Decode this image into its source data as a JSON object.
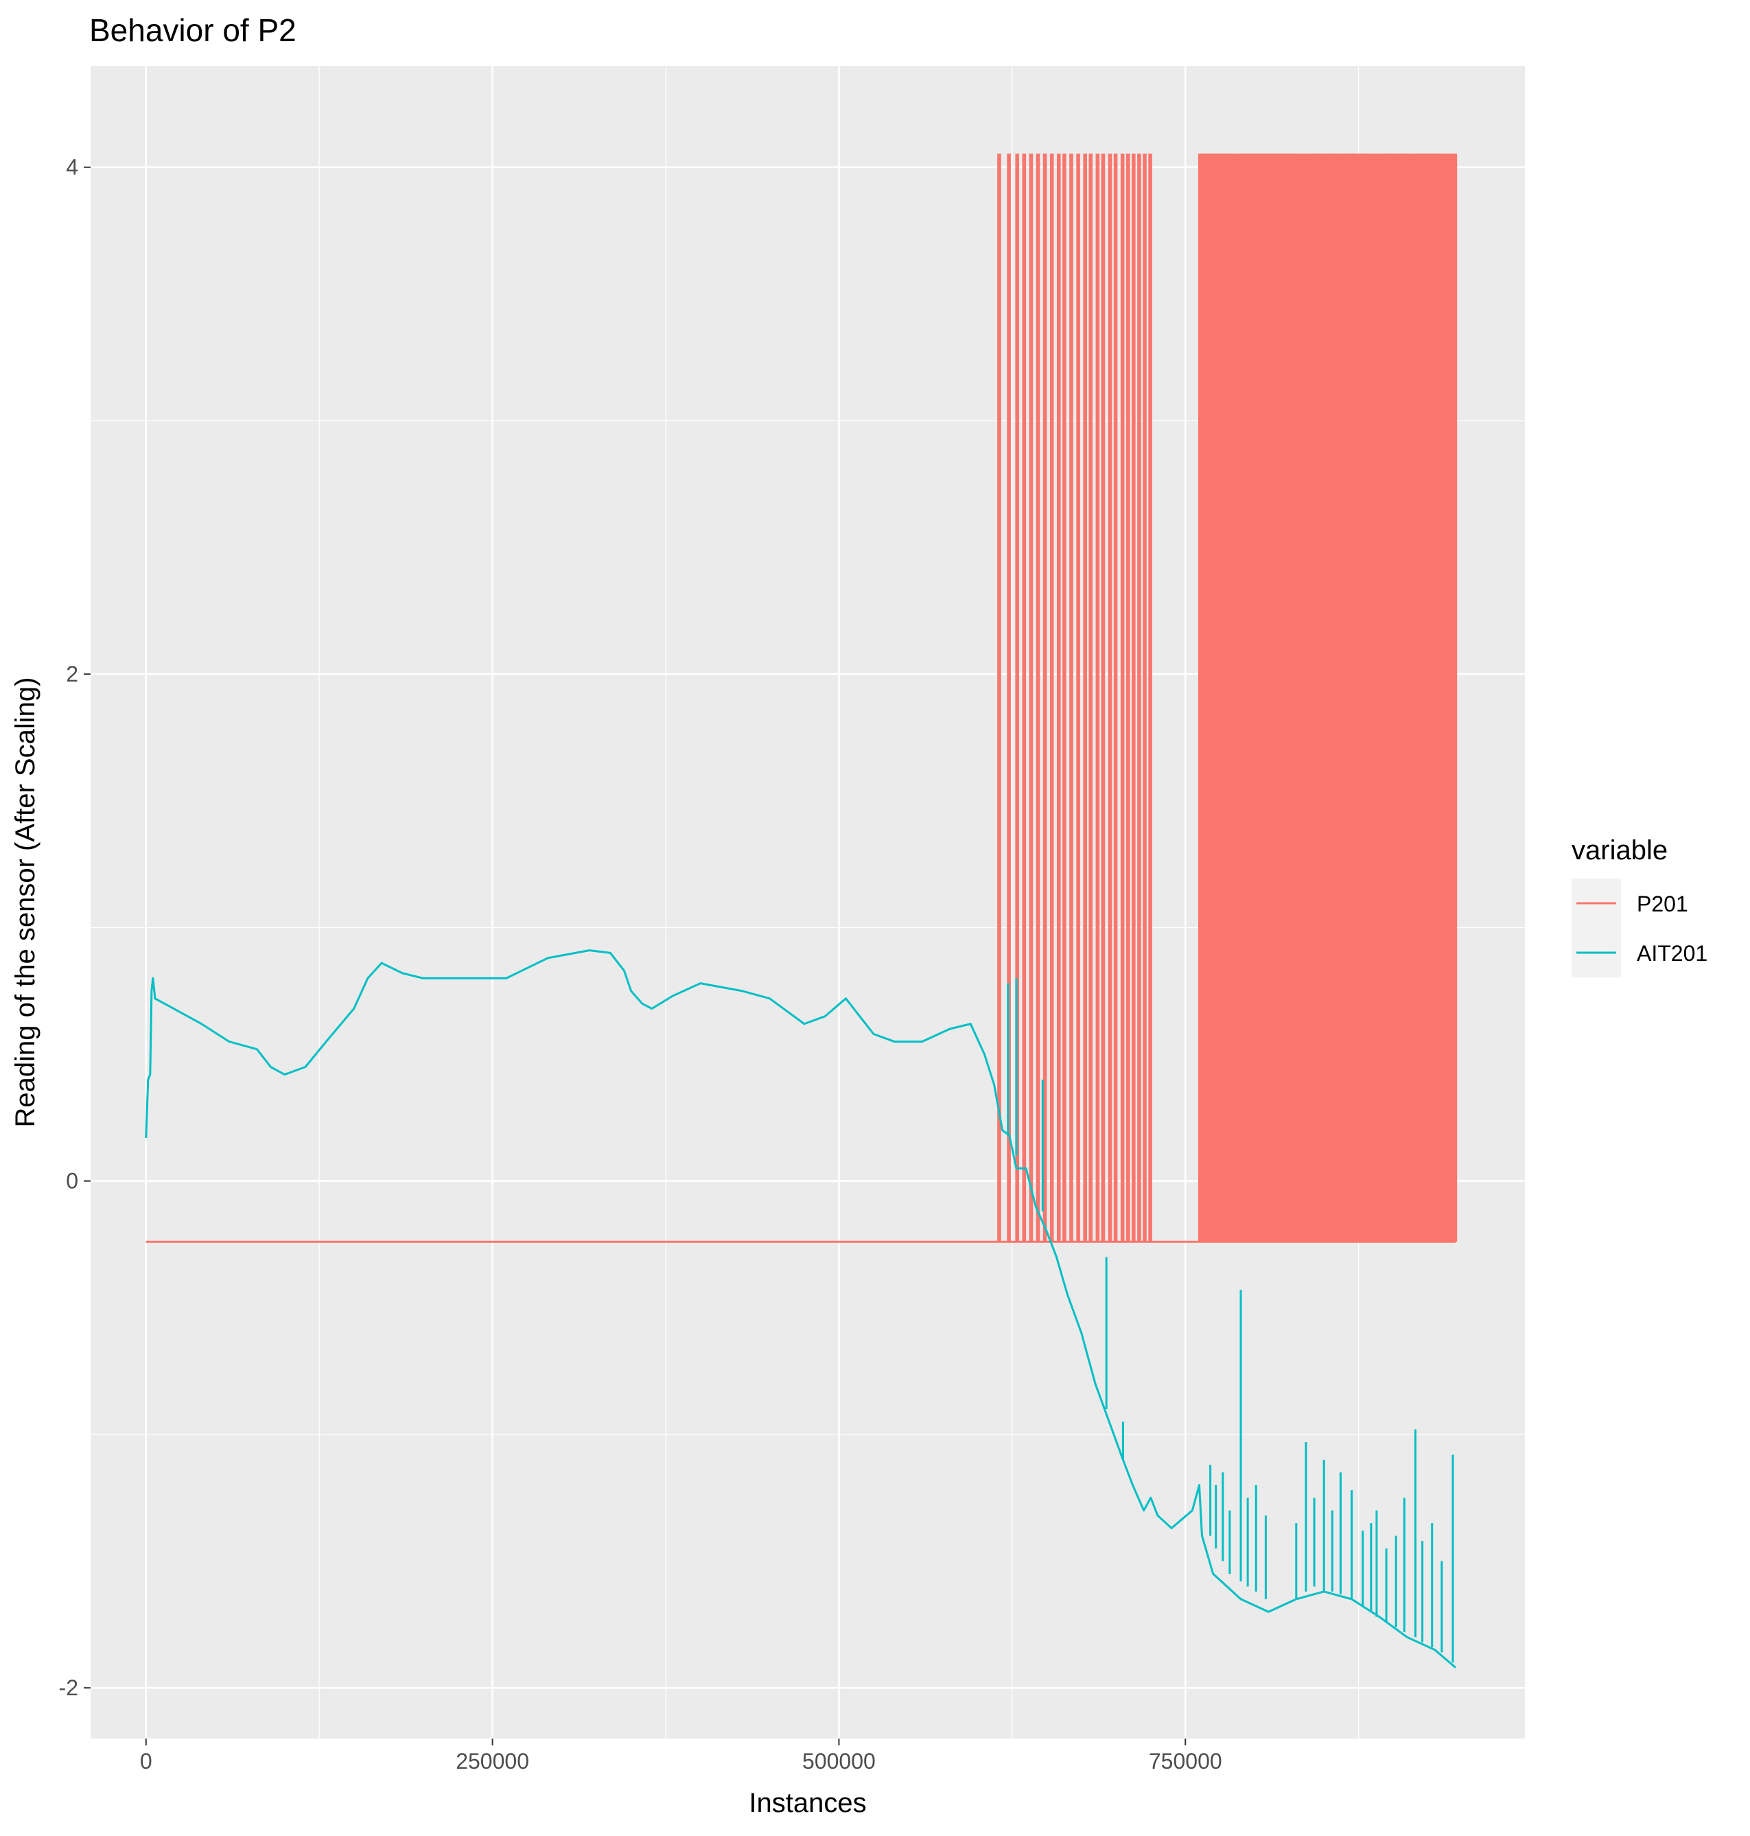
{
  "chart_data": {
    "type": "line",
    "title": "Behavior of P2",
    "xlabel": "Instances",
    "ylabel": "Reading of the sensor (After Scaling)",
    "xlim": [
      -40000,
      995000
    ],
    "ylim": [
      -2.2,
      4.4
    ],
    "x_ticks": [
      0,
      250000,
      500000,
      750000
    ],
    "x_tick_labels": [
      "0",
      "250000",
      "500000",
      "750000"
    ],
    "y_ticks": [
      -2,
      0,
      2,
      4
    ],
    "y_tick_labels": [
      "-2",
      "0",
      "2",
      "4"
    ],
    "grid": true,
    "legend": {
      "title": "variable",
      "position": "right"
    },
    "series": [
      {
        "name": "P201",
        "color": "#F8766D",
        "low": -0.24,
        "high": 4.05,
        "baseline_range": [
          0,
          945000
        ],
        "spikes": [
          615000,
          622000,
          628000,
          633000,
          638000,
          643000,
          648000,
          653000,
          658000,
          662000,
          667000,
          672000,
          677000,
          681000,
          686000,
          690000,
          695000,
          699000,
          704000,
          708000,
          712000,
          716000,
          720000,
          724000,
          760000,
          762000,
          764000,
          766000,
          768000,
          770000,
          772000,
          774000,
          776000,
          778000,
          780000,
          782000,
          784000,
          786000,
          788000,
          790000,
          792000,
          794000,
          796000,
          798000,
          800000,
          802000,
          804000,
          806000,
          808000,
          810000,
          812000,
          814000,
          816000,
          818000,
          820000,
          822000,
          824000,
          826000,
          828000,
          830000,
          832000,
          834000,
          836000,
          838000,
          840000,
          842000,
          844000,
          846000,
          848000,
          850000,
          852000,
          854000,
          856000,
          858000,
          860000,
          862000,
          864000,
          866000,
          868000,
          870000,
          872000,
          874000,
          876000,
          878000,
          880000,
          882000,
          884000,
          886000,
          888000,
          890000,
          892000,
          894000,
          896000,
          898000,
          900000,
          902000,
          904000,
          906000,
          908000,
          910000,
          912000,
          914000,
          916000,
          918000,
          920000,
          922000,
          924000,
          926000,
          928000,
          930000,
          932000,
          934000,
          936000,
          938000,
          940000,
          942000,
          944000
        ],
        "spike_width": 1300
      },
      {
        "name": "AIT201",
        "color": "#00BFC4",
        "x": [
          0,
          1500,
          3000,
          4000,
          5000,
          6500,
          20000,
          40000,
          60000,
          80000,
          90000,
          100000,
          115000,
          130000,
          150000,
          160000,
          170000,
          185000,
          200000,
          230000,
          260000,
          290000,
          320000,
          335000,
          345000,
          350000,
          358000,
          365000,
          380000,
          400000,
          430000,
          450000,
          460000,
          475000,
          490000,
          505000,
          515000,
          525000,
          540000,
          560000,
          580000,
          595000,
          605000,
          612000,
          618000,
          623000,
          628000,
          635000,
          642000,
          650000,
          657000,
          665000,
          675000,
          685000,
          695000,
          705000,
          712000,
          720000,
          725000,
          730000,
          740000,
          755000,
          760000,
          762000,
          770000,
          790000,
          810000,
          830000,
          850000,
          870000,
          890000,
          910000,
          930000,
          945000
        ],
        "y": [
          0.17,
          0.4,
          0.42,
          0.75,
          0.8,
          0.72,
          0.68,
          0.62,
          0.55,
          0.52,
          0.45,
          0.42,
          0.45,
          0.55,
          0.68,
          0.8,
          0.86,
          0.82,
          0.8,
          0.8,
          0.8,
          0.88,
          0.91,
          0.9,
          0.83,
          0.75,
          0.7,
          0.68,
          0.73,
          0.78,
          0.75,
          0.72,
          0.68,
          0.62,
          0.65,
          0.72,
          0.65,
          0.58,
          0.55,
          0.55,
          0.6,
          0.62,
          0.5,
          0.38,
          0.2,
          0.18,
          0.05,
          0.05,
          -0.1,
          -0.2,
          -0.3,
          -0.45,
          -0.6,
          -0.8,
          -0.95,
          -1.1,
          -1.2,
          -1.3,
          -1.25,
          -1.32,
          -1.37,
          -1.3,
          -1.2,
          -1.4,
          -1.55,
          -1.65,
          -1.7,
          -1.65,
          -1.62,
          -1.65,
          -1.72,
          -1.8,
          -1.85,
          -1.92
        ],
        "spikes": [
          {
            "x": 622000,
            "base": 0.18,
            "top": 0.78
          },
          {
            "x": 628000,
            "base": 0.1,
            "top": 0.8
          },
          {
            "x": 647000,
            "base": -0.12,
            "top": 0.4
          },
          {
            "x": 693000,
            "base": -0.9,
            "top": -0.3
          },
          {
            "x": 705000,
            "base": -1.1,
            "top": -0.95
          },
          {
            "x": 768000,
            "base": -1.4,
            "top": -1.12
          },
          {
            "x": 772000,
            "base": -1.45,
            "top": -1.2
          },
          {
            "x": 777000,
            "base": -1.5,
            "top": -1.15
          },
          {
            "x": 782000,
            "base": -1.55,
            "top": -1.3
          },
          {
            "x": 790000,
            "base": -1.58,
            "top": -0.43
          },
          {
            "x": 795000,
            "base": -1.6,
            "top": -1.25
          },
          {
            "x": 801000,
            "base": -1.62,
            "top": -1.2
          },
          {
            "x": 808000,
            "base": -1.65,
            "top": -1.32
          },
          {
            "x": 830000,
            "base": -1.65,
            "top": -1.35
          },
          {
            "x": 837000,
            "base": -1.62,
            "top": -1.03
          },
          {
            "x": 843000,
            "base": -1.6,
            "top": -1.25
          },
          {
            "x": 850000,
            "base": -1.62,
            "top": -1.1
          },
          {
            "x": 856000,
            "base": -1.62,
            "top": -1.3
          },
          {
            "x": 862000,
            "base": -1.63,
            "top": -1.15
          },
          {
            "x": 870000,
            "base": -1.65,
            "top": -1.22
          },
          {
            "x": 878000,
            "base": -1.68,
            "top": -1.38
          },
          {
            "x": 884000,
            "base": -1.7,
            "top": -1.35
          },
          {
            "x": 888000,
            "base": -1.72,
            "top": -1.3
          },
          {
            "x": 895000,
            "base": -1.74,
            "top": -1.45
          },
          {
            "x": 902000,
            "base": -1.76,
            "top": -1.4
          },
          {
            "x": 908000,
            "base": -1.78,
            "top": -1.25
          },
          {
            "x": 916000,
            "base": -1.8,
            "top": -0.98
          },
          {
            "x": 921000,
            "base": -1.82,
            "top": -1.42
          },
          {
            "x": 928000,
            "base": -1.84,
            "top": -1.35
          },
          {
            "x": 935000,
            "base": -1.86,
            "top": -1.5
          },
          {
            "x": 943000,
            "base": -1.9,
            "top": -1.08
          }
        ]
      }
    ]
  }
}
